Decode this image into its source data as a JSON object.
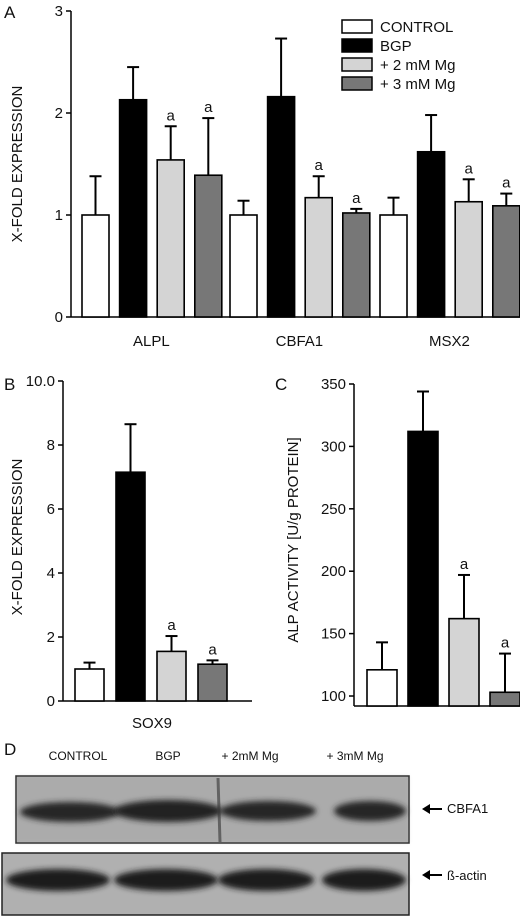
{
  "colors": {
    "control": "#ffffff",
    "bgp": "#000000",
    "mg2": "#d4d4d4",
    "mg3": "#777777",
    "axis": "#000000"
  },
  "panel_letters": {
    "a": "A",
    "b": "B",
    "c": "C",
    "d": "D"
  },
  "chart_data": [
    {
      "panel": "A",
      "type": "bar",
      "categories": [
        "ALPL",
        "CBFA1",
        "MSX2"
      ],
      "ylabel": "X-FOLD EXPRESSION",
      "xlabel": "",
      "ylim": [
        0,
        3
      ],
      "yticks": [
        "0",
        "1",
        "2",
        "3"
      ],
      "legend": {
        "placement": "top-right",
        "entries": [
          "CONTROL",
          "BGP",
          "+ 2 mM Mg",
          "+ 3 mM Mg"
        ]
      },
      "series": [
        {
          "name": "CONTROL",
          "values": [
            1.0,
            1.0,
            1.0
          ],
          "errors": [
            0.38,
            0.14,
            0.17
          ],
          "annotations": [
            "",
            "",
            ""
          ]
        },
        {
          "name": "BGP",
          "values": [
            2.13,
            2.16,
            1.62
          ],
          "errors": [
            0.32,
            0.57,
            0.36
          ],
          "annotations": [
            "",
            "",
            ""
          ]
        },
        {
          "name": "+ 2 mM Mg",
          "values": [
            1.54,
            1.17,
            1.13
          ],
          "errors": [
            0.33,
            0.21,
            0.22
          ],
          "annotations": [
            "a",
            "a",
            "a"
          ]
        },
        {
          "name": "+ 3 mM Mg",
          "values": [
            1.39,
            1.02,
            1.09
          ],
          "errors": [
            0.56,
            0.04,
            0.12
          ],
          "annotations": [
            "a",
            "a",
            "a"
          ]
        }
      ]
    },
    {
      "panel": "B",
      "type": "bar",
      "categories": [
        "SOX9"
      ],
      "ylabel": "X-FOLD EXPRESSION",
      "xlabel": "",
      "ylim": [
        0,
        10
      ],
      "yticks": [
        "0",
        "2",
        "4",
        "6",
        "8",
        "10.0"
      ],
      "series": [
        {
          "name": "CONTROL",
          "values": [
            1.0
          ],
          "errors": [
            0.2
          ],
          "annotations": [
            ""
          ]
        },
        {
          "name": "BGP",
          "values": [
            7.15
          ],
          "errors": [
            1.5
          ],
          "annotations": [
            ""
          ]
        },
        {
          "name": "+ 2 mM Mg",
          "values": [
            1.55
          ],
          "errors": [
            0.48
          ],
          "annotations": [
            "a"
          ]
        },
        {
          "name": "+ 3 mM Mg",
          "values": [
            1.15
          ],
          "errors": [
            0.12
          ],
          "annotations": [
            "a"
          ]
        }
      ]
    },
    {
      "panel": "C",
      "type": "bar",
      "categories": [
        ""
      ],
      "ylabel": "ALP ACTIVITY [U/g PROTEIN]",
      "xlabel": "",
      "ylim": [
        92,
        350
      ],
      "yticks": [
        "100",
        "150",
        "200",
        "250",
        "300",
        "350"
      ],
      "series": [
        {
          "name": "CONTROL",
          "values": [
            121
          ],
          "errors": [
            22
          ],
          "annotations": [
            ""
          ]
        },
        {
          "name": "BGP",
          "values": [
            312
          ],
          "errors": [
            32
          ],
          "annotations": [
            ""
          ]
        },
        {
          "name": "+ 2 mM Mg",
          "values": [
            162
          ],
          "errors": [
            35
          ],
          "annotations": [
            "a"
          ]
        },
        {
          "name": "+ 3 mM Mg",
          "values": [
            103
          ],
          "errors": [
            31
          ],
          "annotations": [
            "a"
          ]
        }
      ]
    }
  ],
  "blot": {
    "lane_labels": [
      "CONTROL",
      "BGP",
      "+ 2mM Mg",
      "+ 3mM Mg"
    ],
    "rows": [
      {
        "label": "CBFA1"
      },
      {
        "label": "ß-actin"
      }
    ]
  }
}
